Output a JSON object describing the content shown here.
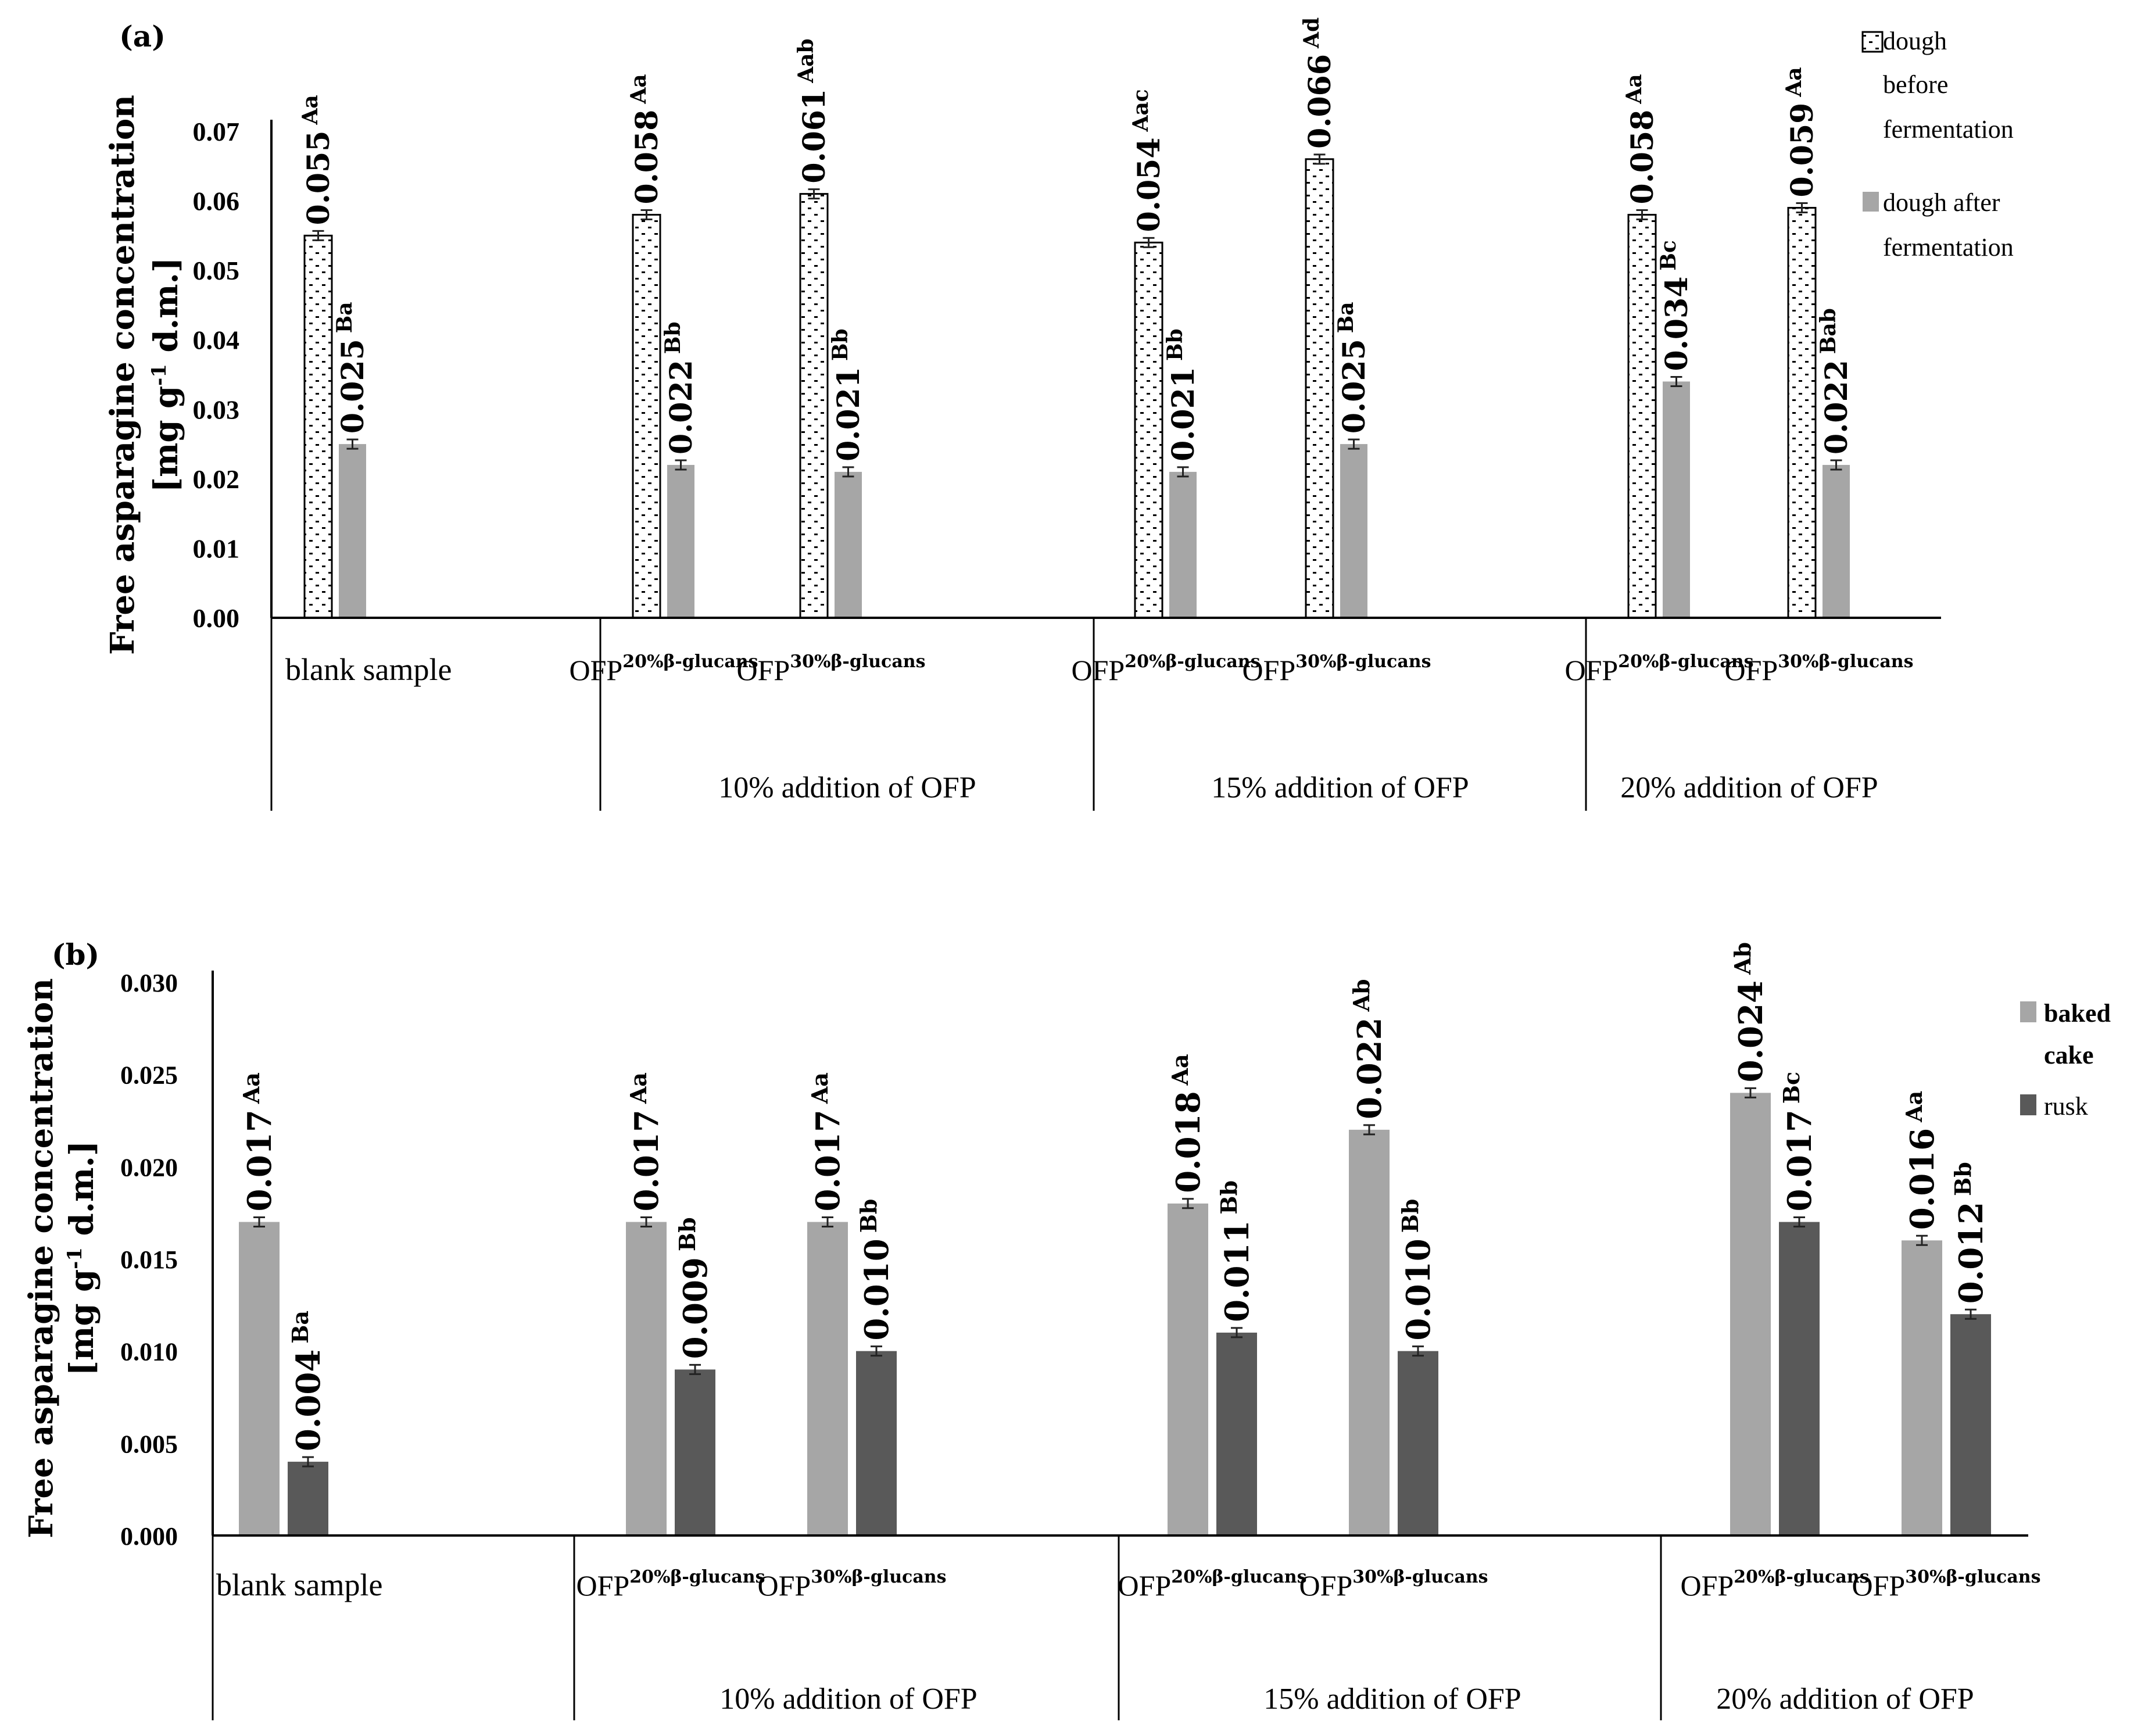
{
  "chart_data": [
    {
      "type": "bar",
      "panel_label": "(a)",
      "ylabel_line1": "Free asparagine concentration",
      "ylabel_line2": "[mg g",
      "ylabel_sup": "-1",
      "ylabel_line2_tail": " d.m.]",
      "ylim": [
        0,
        0.07
      ],
      "y_ticks": [
        "0.00",
        "0.01",
        "0.02",
        "0.03",
        "0.04",
        "0.05",
        "0.06",
        "0.07"
      ],
      "categories": [
        "blank sample",
        "OFP20%β-glucans",
        "OFP30%β-glucans",
        "OFP20%β-glucans",
        "OFP30%β-glucans",
        "OFP20%β-glucans",
        "OFP30%β-glucans"
      ],
      "groups": [
        "",
        "10% addition of OFP",
        "15% addition of OFP",
        "20% addition of OFP"
      ],
      "series": [
        {
          "name": "dough before fermentation",
          "legend_lines": [
            "dough",
            "before",
            "fermentation"
          ],
          "pattern": "dotted",
          "values": [
            0.055,
            0.058,
            0.061,
            0.054,
            0.066,
            0.058,
            0.059
          ],
          "labels": [
            "0.055",
            "0.058",
            "0.061",
            "0.054",
            "0.066",
            "0.058",
            "0.059"
          ],
          "letters": [
            "Aa",
            "Aa",
            "Aab",
            "Aac",
            "Ad",
            "Aa",
            "Aa"
          ]
        },
        {
          "name": "dough after fermentation",
          "legend_lines": [
            "dough after",
            "fermentation"
          ],
          "color": "#a6a6a6",
          "values": [
            0.025,
            0.022,
            0.021,
            0.021,
            0.025,
            0.034,
            0.022
          ],
          "labels": [
            "0.025",
            "0.022",
            "0.021",
            "0.021",
            "0.025",
            "0.034",
            "0.022"
          ],
          "letters": [
            "Ba",
            "Bb",
            "Bb",
            "Bb",
            "Ba",
            "Bc",
            "Bab"
          ]
        }
      ]
    },
    {
      "type": "bar",
      "panel_label": "(b)",
      "ylabel_line1": "Free asparagine concentration",
      "ylabel_line2": "[mg g",
      "ylabel_sup": "-1",
      "ylabel_line2_tail": " d.m.]",
      "ylim": [
        0,
        0.03
      ],
      "y_ticks": [
        "0.000",
        "0.005",
        "0.010",
        "0.015",
        "0.020",
        "0.025",
        "0.030"
      ],
      "categories": [
        "blank sample",
        "OFP20%β-glucans",
        "OFP30%β-glucans",
        "OFP20%β-glucans",
        "OFP30%β-glucans",
        "OFP20%β-glucans",
        "OFP30%β-glucans"
      ],
      "groups": [
        "",
        "10% addition of OFP",
        "15% addition of OFP",
        "20% addition of OFP"
      ],
      "series": [
        {
          "name": "baked cake",
          "legend_lines": [
            "baked",
            "cake"
          ],
          "color": "#a6a6a6",
          "values": [
            0.017,
            0.017,
            0.017,
            0.018,
            0.022,
            0.024,
            0.016
          ],
          "labels": [
            "0.017",
            "0.017",
            "0.017",
            "0.018",
            "0.022",
            "0.024",
            "0.016"
          ],
          "letters": [
            "Aa",
            "Aa",
            "Aa",
            "Aa",
            "Ab",
            "Ab",
            "Aa"
          ]
        },
        {
          "name": "rusk",
          "legend_lines": [
            "rusk"
          ],
          "color": "#595959",
          "values": [
            0.004,
            0.009,
            0.01,
            0.011,
            0.01,
            0.017,
            0.012
          ],
          "labels": [
            "0.004",
            "0.009",
            "0.010",
            "0.011",
            "0.010",
            "0.017",
            "0.012"
          ],
          "letters": [
            "Ba",
            "Bb",
            "Bb",
            "Bb",
            "Bb",
            "Bc",
            "Bb"
          ]
        }
      ]
    }
  ],
  "ofp_base": "OFP",
  "ofp_sup_20": "20%β-glucans",
  "ofp_sup_30": "30%β-glucans"
}
